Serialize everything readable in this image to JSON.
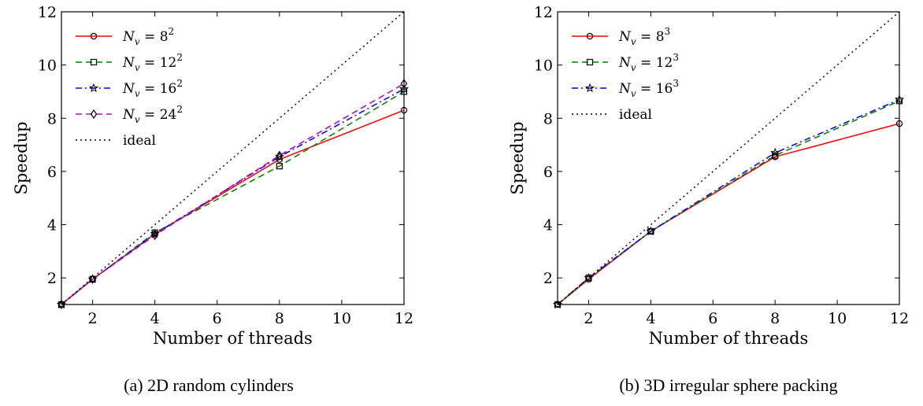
{
  "colors": {
    "nv8": "#ff0000",
    "nv12": "#008000",
    "nv16": "#0000ff",
    "nv24": "#bf00bf",
    "ideal": "#000000"
  },
  "chart_data": [
    {
      "type": "line",
      "caption": "(a) 2D random cylinders",
      "xlabel": "Number of threads",
      "ylabel": "Speedup",
      "xlim": [
        1,
        12
      ],
      "ylim": [
        1,
        12
      ],
      "xticks": [
        2,
        4,
        6,
        8,
        10,
        12
      ],
      "yticks": [
        2,
        4,
        6,
        8,
        10,
        12
      ],
      "grid": false,
      "legend_position": "upper-left",
      "x": [
        1,
        2,
        4,
        8,
        12
      ],
      "series": [
        {
          "name": "N_v = 8^2",
          "legend_base": "8",
          "legend_exp": "2",
          "color": "#ff0000",
          "dash": "solid",
          "marker": "circle",
          "values": [
            1.0,
            1.95,
            3.65,
            6.45,
            8.3
          ]
        },
        {
          "name": "N_v = 12^2",
          "legend_base": "12",
          "legend_exp": "2",
          "color": "#008000",
          "dash": "dashed",
          "marker": "square",
          "values": [
            1.0,
            1.95,
            3.7,
            6.2,
            9.0
          ]
        },
        {
          "name": "N_v = 16^2",
          "legend_base": "16",
          "legend_exp": "2",
          "color": "#0000ff",
          "dash": "dashdot",
          "marker": "star",
          "values": [
            1.0,
            1.95,
            3.65,
            6.55,
            9.1
          ]
        },
        {
          "name": "N_v = 24^2",
          "legend_base": "24",
          "legend_exp": "2",
          "color": "#bf00bf",
          "dash": "dashed",
          "marker": "diamond",
          "values": [
            1.0,
            1.95,
            3.6,
            6.6,
            9.3
          ]
        },
        {
          "name": "ideal",
          "color": "#000000",
          "dash": "dotted",
          "marker": "none",
          "values": [
            1,
            2,
            4,
            8,
            12
          ]
        }
      ]
    },
    {
      "type": "line",
      "caption": "(b) 3D irregular sphere packing",
      "xlabel": "Number  of threads",
      "ylabel": "Speedup",
      "xlim": [
        1,
        12
      ],
      "ylim": [
        1,
        12
      ],
      "xticks": [
        2,
        4,
        6,
        8,
        10,
        12
      ],
      "yticks": [
        2,
        4,
        6,
        8,
        10,
        12
      ],
      "grid": false,
      "legend_position": "upper-left",
      "x": [
        1,
        2,
        4,
        8,
        12
      ],
      "series": [
        {
          "name": "N_v = 8^3",
          "legend_base": "8",
          "legend_exp": "3",
          "color": "#ff0000",
          "dash": "solid",
          "marker": "circle",
          "values": [
            1.0,
            1.95,
            3.75,
            6.55,
            7.8
          ]
        },
        {
          "name": "N_v = 12^3",
          "legend_base": "12",
          "legend_exp": "3",
          "color": "#008000",
          "dash": "dashed",
          "marker": "square",
          "values": [
            1.0,
            2.0,
            3.75,
            6.6,
            8.65
          ]
        },
        {
          "name": "N_v = 16^3",
          "legend_base": "16",
          "legend_exp": "3",
          "color": "#0000ff",
          "dash": "dashdot",
          "marker": "star",
          "values": [
            1.0,
            2.0,
            3.75,
            6.7,
            8.7
          ]
        },
        {
          "name": "ideal",
          "color": "#000000",
          "dash": "dotted",
          "marker": "none",
          "values": [
            1,
            2,
            4,
            8,
            12
          ]
        }
      ]
    }
  ]
}
